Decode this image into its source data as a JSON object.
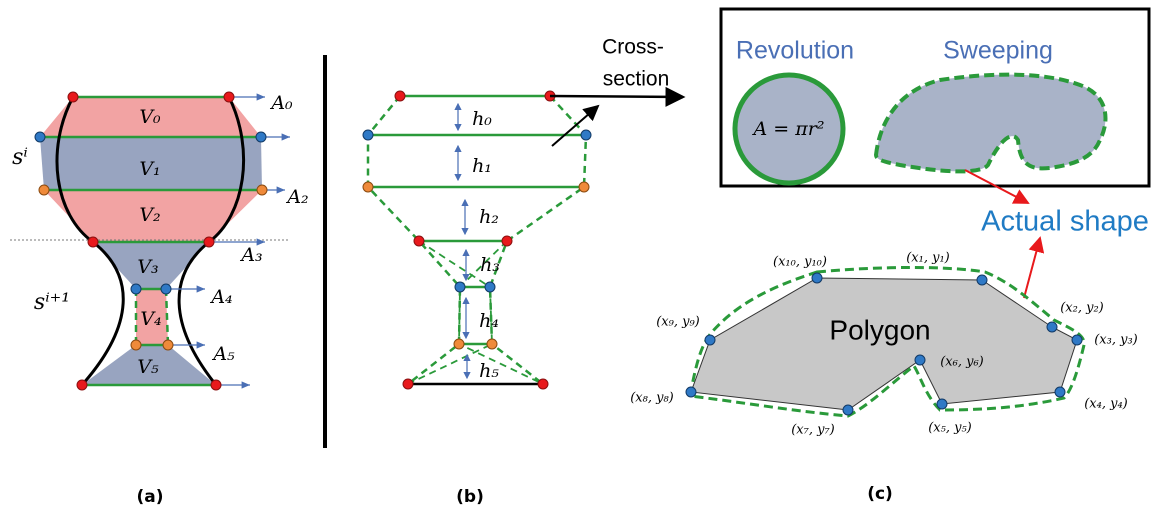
{
  "panel_a": {
    "caption": "(a)",
    "volumes": [
      "V₀",
      "V₁",
      "V₂",
      "V₃",
      "V₄",
      "V₅"
    ],
    "areas": [
      "A₀",
      "A₂",
      "A₃",
      "A₄",
      "A₅"
    ],
    "curves": [
      "sⁱ",
      "sⁱ⁺¹"
    ]
  },
  "panel_b": {
    "caption": "(b)",
    "heights": [
      "h₀",
      "h₁",
      "h₂",
      "h₃",
      "h₄",
      "h₅"
    ]
  },
  "panel_c": {
    "caption": "(c)",
    "cross_section": [
      "Cross-",
      "section"
    ],
    "revolution": "Revolution",
    "formula": "A = πr²",
    "sweeping": "Sweeping",
    "actual_shape": "Actual shape",
    "polygon": "Polygon",
    "vertices": [
      "(x₁, y₁)",
      "(x₂, y₂)",
      "(x₃, y₃)",
      "(x₄, y₄)",
      "(x₅, y₅)",
      "(x₆, y₆)",
      "(x₇, y₇)",
      "(x₈, y₈)",
      "(x₉, y₉)",
      "(x₁₀, y₁₀)"
    ]
  }
}
